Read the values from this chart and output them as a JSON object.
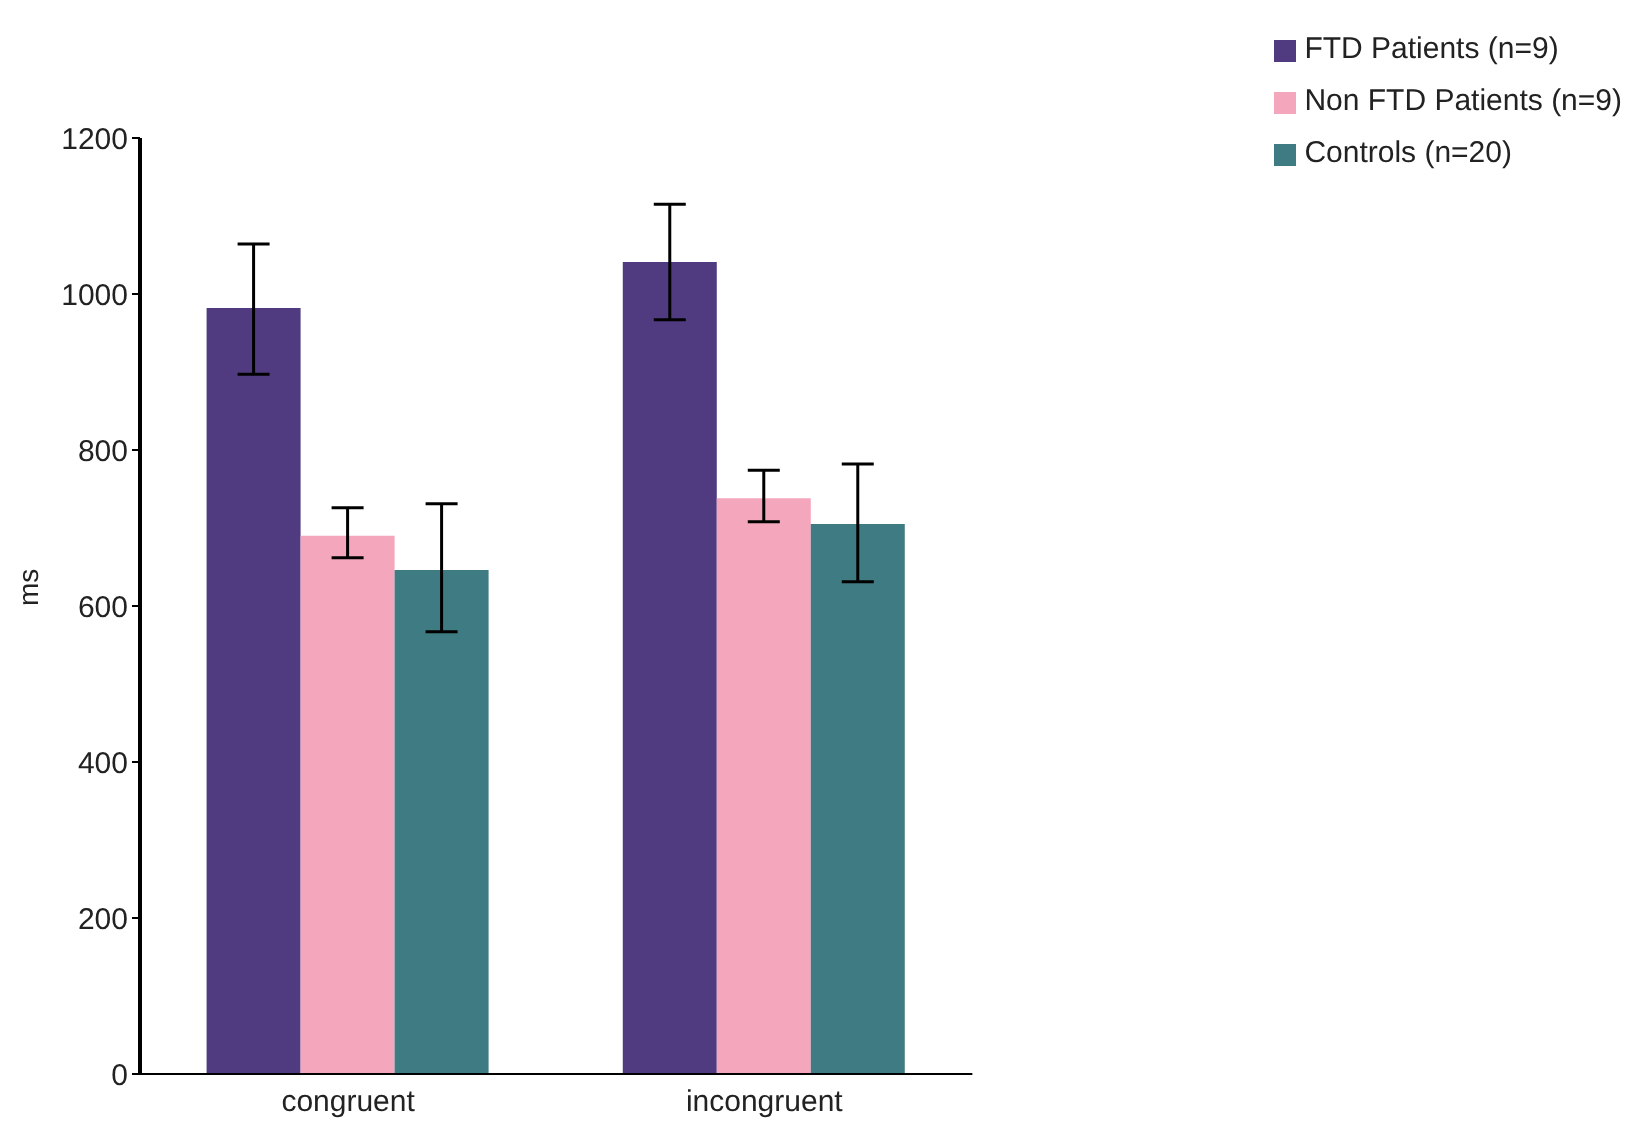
{
  "chart_data": {
    "type": "bar",
    "ylabel": "ms",
    "categories": [
      "congruent",
      "incongruent"
    ],
    "series": [
      {
        "name": "FTD Patients (n=9)",
        "color": "#513b80",
        "values": [
          982,
          1041
        ],
        "errors": [
          [
            897,
            1064
          ],
          [
            967,
            1115
          ]
        ]
      },
      {
        "name": "Non FTD Patients (n=9)",
        "color": "#f4a7bc",
        "values": [
          690,
          738
        ],
        "errors": [
          [
            662,
            726
          ],
          [
            708,
            774
          ]
        ]
      },
      {
        "name": "Controls (n=20)",
        "color": "#3e7b82",
        "values": [
          646,
          705
        ],
        "errors": [
          [
            567,
            731
          ],
          [
            631,
            782
          ]
        ]
      }
    ],
    "ylim": [
      0,
      1200
    ],
    "yticks": [
      0,
      200,
      400,
      600,
      800,
      1000,
      1200
    ],
    "grid": false,
    "legend": "top right"
  }
}
